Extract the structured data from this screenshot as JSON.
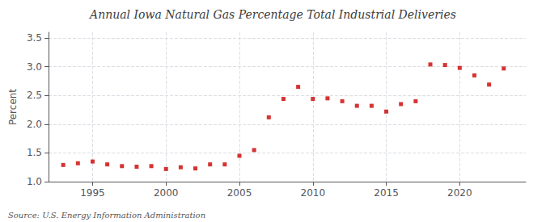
{
  "chart_data": {
    "type": "scatter",
    "title": "Annual Iowa Natural Gas Percentage Total Industrial Deliveries",
    "ylabel": "Percent",
    "annotations": [
      "Source: U.S. Energy Information Administration"
    ],
    "x": [
      1993,
      1994,
      1995,
      1996,
      1997,
      1998,
      1999,
      2000,
      2001,
      2002,
      2003,
      2004,
      2005,
      2006,
      2007,
      2008,
      2009,
      2010,
      2011,
      2012,
      2013,
      2014,
      2015,
      2016,
      2017,
      2018,
      2019,
      2020,
      2021,
      2022,
      2023
    ],
    "values": [
      1.29,
      1.32,
      1.35,
      1.3,
      1.27,
      1.26,
      1.27,
      1.22,
      1.25,
      1.23,
      1.3,
      1.3,
      1.45,
      1.55,
      2.12,
      2.44,
      2.65,
      2.44,
      2.45,
      2.4,
      2.32,
      2.32,
      2.22,
      2.35,
      2.4,
      3.04,
      3.03,
      2.98,
      2.85,
      2.69,
      2.97
    ],
    "color": "#cc0000",
    "marker": "square",
    "xlim": [
      1992.0,
      2024.5
    ],
    "xticks": [
      1995,
      2000,
      2005,
      2010,
      2015,
      2020
    ],
    "ylim": [
      1.0,
      3.6
    ],
    "yticks": [
      {
        "value": 1.0,
        "label": "1.0"
      },
      1.5,
      {
        "value": 2.0,
        "label": "2.0"
      },
      2.5,
      {
        "value": 3.0,
        "label": "3.0"
      },
      3.5
    ],
    "grid": true
  }
}
